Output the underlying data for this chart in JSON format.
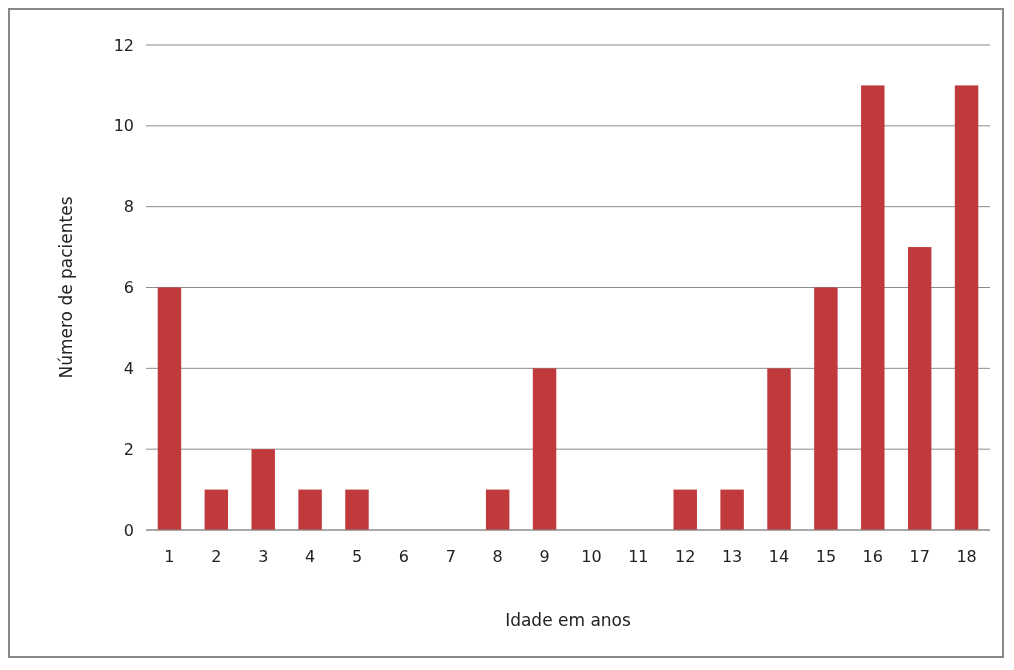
{
  "chart_data": {
    "type": "bar",
    "xlabel": "Idade em anos",
    "ylabel": "Número de pacientes",
    "categories": [
      "1",
      "2",
      "3",
      "4",
      "5",
      "6",
      "7",
      "8",
      "9",
      "10",
      "11",
      "12",
      "13",
      "14",
      "15",
      "16",
      "17",
      "18"
    ],
    "values": [
      6,
      1,
      2,
      1,
      1,
      0,
      0,
      1,
      4,
      0,
      0,
      1,
      1,
      4,
      6,
      11,
      7,
      11
    ],
    "color": "#c0393b",
    "ylim": [
      0,
      12
    ],
    "yticks": [
      0,
      2,
      4,
      6,
      8,
      10,
      12
    ],
    "grid": "y"
  }
}
